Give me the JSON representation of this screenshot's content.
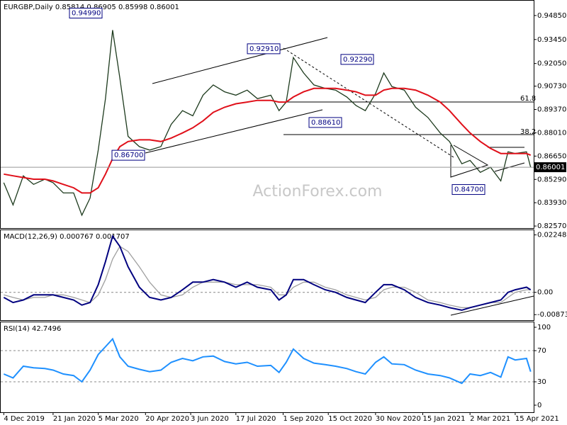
{
  "chart_data": [
    {
      "type": "line",
      "title": "EURGBP,Daily  0.85814 0.86905 0.85998 0.86001",
      "x": [
        "2019-12-04",
        "2019-12-13",
        "2019-12-23",
        "2020-01-02",
        "2020-01-13",
        "2020-01-21",
        "2020-01-31",
        "2020-02-10",
        "2020-02-18",
        "2020-02-26",
        "2020-03-05",
        "2020-03-12",
        "2020-03-19",
        "2020-03-26",
        "2020-04-03",
        "2020-04-14",
        "2020-04-24",
        "2020-05-05",
        "2020-05-15",
        "2020-05-26",
        "2020-06-05",
        "2020-06-15",
        "2020-06-25",
        "2020-07-06",
        "2020-07-17",
        "2020-07-28",
        "2020-08-07",
        "2020-08-20",
        "2020-08-28",
        "2020-09-04",
        "2020-09-11",
        "2020-09-21",
        "2020-10-01",
        "2020-10-12",
        "2020-10-22",
        "2020-11-02",
        "2020-11-11",
        "2020-11-20",
        "2020-11-30",
        "2020-12-08",
        "2020-12-16",
        "2020-12-28",
        "2021-01-08",
        "2021-01-20",
        "2021-02-01",
        "2021-02-10",
        "2021-02-22",
        "2021-03-02",
        "2021-03-12",
        "2021-03-22",
        "2021-04-01",
        "2021-04-08",
        "2021-04-15",
        "2021-04-26",
        "2021-04-30"
      ],
      "xlim": [
        "2019-12-01",
        "2021-05-03"
      ],
      "xticks": [
        {
          "value": "2019-12-04",
          "label": "4 Dec 2019"
        },
        {
          "value": "2020-01-21",
          "label": "21 Jan 2020"
        },
        {
          "value": "2020-03-05",
          "label": "5 Mar 2020"
        },
        {
          "value": "2020-04-20",
          "label": "20 Apr 2020"
        },
        {
          "value": "2020-06-03",
          "label": "3 Jun 2020"
        },
        {
          "value": "2020-07-17",
          "label": "17 Jul 2020"
        },
        {
          "value": "2020-09-01",
          "label": "1 Sep 2020"
        },
        {
          "value": "2020-10-15",
          "label": "15 Oct 2020"
        },
        {
          "value": "2020-11-30",
          "label": "30 Nov 2020"
        },
        {
          "value": "2021-01-15",
          "label": "15 Jan 2021"
        },
        {
          "value": "2021-03-02",
          "label": "2 Mar 2021"
        },
        {
          "value": "2021-04-15",
          "label": "15 Apr 2021"
        }
      ],
      "ylim": [
        0.8245,
        0.9559
      ],
      "yticks": [
        {
          "value": 0.9485,
          "label": "0.94850"
        },
        {
          "value": 0.9345,
          "label": "0.93450"
        },
        {
          "value": 0.9205,
          "label": "0.92050"
        },
        {
          "value": 0.9073,
          "label": "0.90730"
        },
        {
          "value": 0.8937,
          "label": "0.89370"
        },
        {
          "value": 0.8801,
          "label": "0.88010"
        },
        {
          "value": 0.8665,
          "label": "0.86650"
        },
        {
          "value": 0.8529,
          "label": "0.85290"
        },
        {
          "value": 0.8393,
          "label": "0.83930"
        },
        {
          "value": 0.8257,
          "label": "0.82570"
        }
      ],
      "grid": false,
      "series": [
        {
          "color": "#1d3a1d",
          "values": [
            0.851,
            0.838,
            0.855,
            0.85,
            0.853,
            0.851,
            0.845,
            0.845,
            0.832,
            0.842,
            0.87,
            0.9,
            0.94,
            0.912,
            0.878,
            0.872,
            0.87,
            0.872,
            0.885,
            0.893,
            0.89,
            0.902,
            0.908,
            0.904,
            0.902,
            0.905,
            0.9,
            0.902,
            0.893,
            0.898,
            0.924,
            0.915,
            0.908,
            0.906,
            0.905,
            0.901,
            0.896,
            0.893,
            0.903,
            0.915,
            0.907,
            0.905,
            0.895,
            0.889,
            0.88,
            0.875,
            0.862,
            0.864,
            0.857,
            0.86,
            0.852,
            0.869,
            0.868,
            0.869,
            0.86
          ]
        },
        {
          "color": "#e0101a",
          "values": [
            0.856,
            0.855,
            0.854,
            0.853,
            0.853,
            0.852,
            0.85,
            0.848,
            0.845,
            0.845,
            0.848,
            0.856,
            0.865,
            0.872,
            0.875,
            0.876,
            0.876,
            0.875,
            0.877,
            0.88,
            0.883,
            0.887,
            0.892,
            0.895,
            0.897,
            0.898,
            0.899,
            0.899,
            0.898,
            0.898,
            0.901,
            0.904,
            0.906,
            0.906,
            0.906,
            0.905,
            0.904,
            0.902,
            0.902,
            0.905,
            0.906,
            0.906,
            0.905,
            0.902,
            0.898,
            0.893,
            0.885,
            0.88,
            0.875,
            0.871,
            0.868,
            0.868,
            0.868,
            0.868,
            0.867
          ]
        }
      ],
      "last_price": 0.86001,
      "annotations": [
        {
          "value": 0.9499,
          "label": "0.94990"
        },
        {
          "value": 0.9291,
          "label": "0.92910"
        },
        {
          "value": 0.9229,
          "label": "0.92290"
        },
        {
          "value": 0.8861,
          "label": "0.88610"
        },
        {
          "value": 0.867,
          "label": "0.86700"
        },
        {
          "value": 0.847,
          "label": "0.84700"
        }
      ],
      "fib_labels": [
        "61.8",
        "38.2"
      ],
      "watermark": "ActionForex.com"
    },
    {
      "type": "line",
      "title": "MACD(12,26,9) 0.000767 0.001707",
      "ylim": [
        -0.0109,
        0.0246
      ],
      "yticks": [
        0.022482,
        {
          "value": 0,
          "label": "0.00"
        },
        -0.008736
      ],
      "grid": true,
      "series": [
        {
          "color": "#a0a0a0",
          "values": [
            -0.001,
            -0.002,
            -0.003,
            -0.002,
            -0.002,
            -0.001,
            -0.001,
            -0.002,
            -0.003,
            -0.004,
            -0.001,
            0.005,
            0.013,
            0.018,
            0.016,
            0.01,
            0.004,
            -0.001,
            -0.002,
            -0.001,
            0.002,
            0.004,
            0.004,
            0.004,
            0.003,
            0.003,
            0.003,
            0.002,
            -0.001,
            -0.001,
            0.002,
            0.004,
            0.004,
            0.002,
            0.001,
            -0.001,
            -0.002,
            -0.003,
            -0.002,
            0.001,
            0.002,
            0.002,
            0.0,
            -0.003,
            -0.004,
            -0.005,
            -0.006,
            -0.006,
            -0.005,
            -0.004,
            -0.004,
            -0.002,
            0.0,
            0.001,
            0.001
          ]
        },
        {
          "color": "#00007f",
          "values": [
            -0.002,
            -0.004,
            -0.003,
            -0.001,
            -0.001,
            -0.001,
            -0.002,
            -0.003,
            -0.005,
            -0.004,
            0.003,
            0.012,
            0.022,
            0.018,
            0.01,
            0.002,
            -0.002,
            -0.003,
            -0.002,
            0.001,
            0.004,
            0.004,
            0.005,
            0.004,
            0.002,
            0.004,
            0.002,
            0.001,
            -0.003,
            -0.001,
            0.005,
            0.005,
            0.003,
            0.001,
            0.0,
            -0.002,
            -0.003,
            -0.004,
            0.0,
            0.003,
            0.003,
            0.001,
            -0.002,
            -0.004,
            -0.005,
            -0.006,
            -0.007,
            -0.006,
            -0.005,
            -0.004,
            -0.003,
            0.0,
            0.001,
            0.002,
            0.001
          ]
        }
      ]
    },
    {
      "type": "line",
      "title": "RSI(14) 42.7496",
      "ylim": [
        -9.1,
        107.3
      ],
      "yticks": [
        100,
        70,
        30,
        0
      ],
      "grid": true,
      "series": [
        {
          "color": "#1e90ff",
          "values": [
            40,
            35,
            50,
            48,
            47,
            45,
            40,
            38,
            30,
            45,
            65,
            75,
            85,
            62,
            50,
            46,
            43,
            45,
            55,
            60,
            57,
            62,
            63,
            56,
            53,
            55,
            50,
            51,
            42,
            55,
            72,
            60,
            54,
            52,
            50,
            47,
            43,
            40,
            55,
            62,
            53,
            52,
            45,
            40,
            38,
            35,
            28,
            40,
            38,
            42,
            36,
            62,
            58,
            60,
            43
          ]
        }
      ]
    }
  ]
}
